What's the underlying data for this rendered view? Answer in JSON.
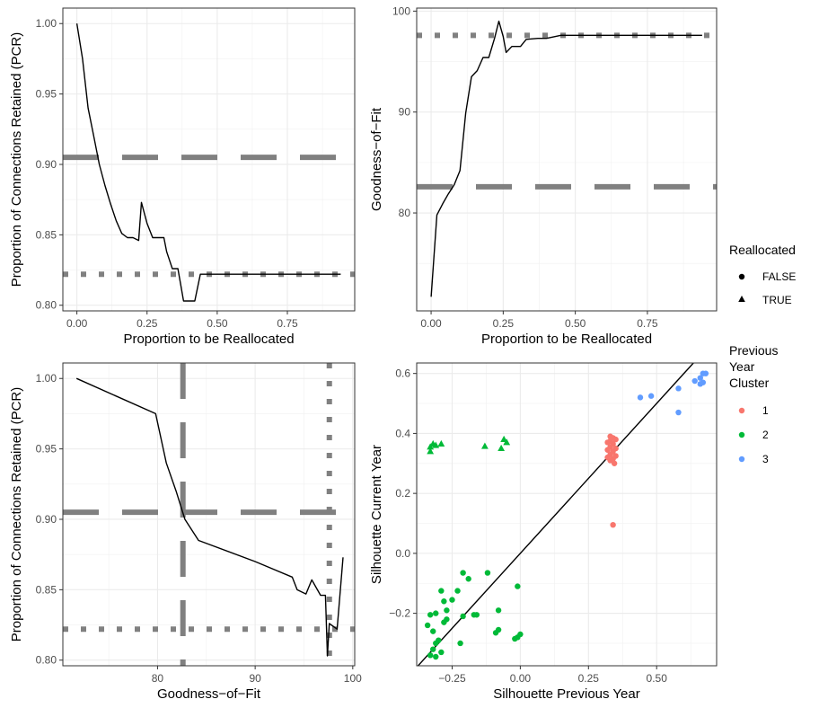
{
  "chart_data": [
    {
      "type": "line",
      "panel": "top-left",
      "xlabel": "Proportion to be Reallocated",
      "ylabel": "Proportion of Connections Retained (PCR)",
      "xlim": [
        -0.05,
        0.99
      ],
      "ylim": [
        0.796,
        1.011
      ],
      "x_ticks": [
        0.0,
        0.25,
        0.5,
        0.75
      ],
      "x_tick_labels": [
        "0.00",
        "0.25",
        "0.50",
        "0.75"
      ],
      "y_ticks": [
        0.8,
        0.85,
        0.9,
        0.95,
        1.0
      ],
      "y_tick_labels": [
        "0.80",
        "0.85",
        "0.90",
        "0.95",
        "1.00"
      ],
      "grid": true,
      "series": [
        {
          "x": [
            0.0,
            0.02,
            0.04,
            0.06,
            0.08,
            0.1,
            0.12,
            0.14,
            0.16,
            0.18,
            0.2,
            0.22,
            0.23,
            0.25,
            0.27,
            0.29,
            0.31,
            0.32,
            0.34,
            0.36,
            0.38,
            0.4,
            0.42,
            0.44,
            0.5,
            0.6,
            0.7,
            0.8,
            0.9,
            0.94
          ],
          "values": [
            1.0,
            0.975,
            0.94,
            0.92,
            0.9,
            0.885,
            0.872,
            0.86,
            0.851,
            0.848,
            0.848,
            0.846,
            0.873,
            0.858,
            0.848,
            0.848,
            0.848,
            0.838,
            0.826,
            0.826,
            0.803,
            0.803,
            0.803,
            0.822,
            0.822,
            0.822,
            0.822,
            0.822,
            0.822,
            0.822
          ]
        }
      ],
      "reference_lines": [
        {
          "orientation": "horizontal",
          "value": 0.905,
          "style": "dashed"
        },
        {
          "orientation": "horizontal",
          "value": 0.822,
          "style": "dotted"
        }
      ]
    },
    {
      "type": "line",
      "panel": "top-right",
      "xlabel": "Proportion to be Reallocated",
      "ylabel": "Goodness−of−Fit",
      "xlim": [
        -0.05,
        0.99
      ],
      "ylim": [
        70.3,
        100.3
      ],
      "x_ticks": [
        0.0,
        0.25,
        0.5,
        0.75
      ],
      "x_tick_labels": [
        "0.00",
        "0.25",
        "0.50",
        "0.75"
      ],
      "y_ticks": [
        80,
        90,
        100
      ],
      "y_tick_labels": [
        "80",
        "90",
        "100"
      ],
      "grid": true,
      "series": [
        {
          "x": [
            0.0,
            0.02,
            0.04,
            0.06,
            0.08,
            0.1,
            0.12,
            0.14,
            0.16,
            0.18,
            0.2,
            0.22,
            0.235,
            0.25,
            0.26,
            0.28,
            0.3,
            0.31,
            0.33,
            0.37,
            0.4,
            0.45,
            0.5,
            0.6,
            0.7,
            0.8,
            0.9,
            0.94
          ],
          "values": [
            71.7,
            79.8,
            80.9,
            81.9,
            82.8,
            84.2,
            89.9,
            93.5,
            94.1,
            95.4,
            95.4,
            97.3,
            99.0,
            97.5,
            95.9,
            96.5,
            96.5,
            96.5,
            97.2,
            97.3,
            97.3,
            97.6,
            97.6,
            97.6,
            97.6,
            97.6,
            97.6,
            97.6
          ]
        }
      ],
      "reference_lines": [
        {
          "orientation": "horizontal",
          "value": 97.6,
          "style": "dotted"
        },
        {
          "orientation": "horizontal",
          "value": 82.6,
          "style": "dashed"
        }
      ]
    },
    {
      "type": "line",
      "panel": "bottom-left",
      "xlabel": "Goodness−of−Fit",
      "ylabel": "Proportion of Connections Retained (PCR)",
      "xlim": [
        70.3,
        100.2
      ],
      "ylim": [
        0.796,
        1.011
      ],
      "x_ticks": [
        80,
        90,
        100
      ],
      "x_tick_labels": [
        "80",
        "90",
        "100"
      ],
      "y_ticks": [
        0.8,
        0.85,
        0.9,
        0.95,
        1.0
      ],
      "y_tick_labels": [
        "0.80",
        "0.85",
        "0.90",
        "0.95",
        "1.00"
      ],
      "grid": true,
      "series": [
        {
          "x": [
            71.7,
            79.8,
            80.9,
            81.9,
            82.8,
            84.2,
            90.0,
            93.8,
            94.3,
            95.2,
            95.8,
            96.7,
            97.2,
            97.4,
            97.6,
            98.4,
            99.0
          ],
          "values": [
            1.0,
            0.975,
            0.94,
            0.92,
            0.9,
            0.885,
            0.87,
            0.859,
            0.85,
            0.847,
            0.857,
            0.846,
            0.846,
            0.803,
            0.826,
            0.822,
            0.873
          ]
        }
      ],
      "reference_lines": [
        {
          "orientation": "horizontal",
          "value": 0.905,
          "style": "dashed"
        },
        {
          "orientation": "horizontal",
          "value": 0.822,
          "style": "dotted"
        },
        {
          "orientation": "vertical",
          "value": 82.6,
          "style": "dashed"
        },
        {
          "orientation": "vertical",
          "value": 97.6,
          "style": "dotted"
        }
      ]
    },
    {
      "type": "scatter",
      "panel": "bottom-right",
      "xlabel": "Silhouette Previous Year",
      "ylabel": "Silhouette Current Year",
      "xlim": [
        -0.38,
        0.72
      ],
      "ylim": [
        -0.375,
        0.635
      ],
      "x_ticks": [
        -0.25,
        0.0,
        0.25,
        0.5
      ],
      "x_tick_labels": [
        "−0.25",
        "0.00",
        "0.25",
        "0.50"
      ],
      "y_ticks": [
        -0.2,
        0.0,
        0.2,
        0.4,
        0.6
      ],
      "y_tick_labels": [
        "−0.2",
        "0.0",
        "0.2",
        "0.4",
        "0.6"
      ],
      "grid": true,
      "reference_lines": [
        {
          "orientation": "diagonal",
          "slope": 1,
          "intercept": 0,
          "style": "solid"
        }
      ],
      "series": [
        {
          "cluster": "1",
          "color": "#F8766D",
          "points": [
            [
              0.33,
              0.39,
              false
            ],
            [
              0.34,
              0.385,
              false
            ],
            [
              0.33,
              0.375,
              false
            ],
            [
              0.35,
              0.38,
              false
            ],
            [
              0.32,
              0.37,
              false
            ],
            [
              0.34,
              0.365,
              false
            ],
            [
              0.33,
              0.355,
              false
            ],
            [
              0.35,
              0.35,
              false
            ],
            [
              0.32,
              0.345,
              false
            ],
            [
              0.34,
              0.34,
              false
            ],
            [
              0.33,
              0.33,
              false
            ],
            [
              0.35,
              0.325,
              false
            ],
            [
              0.32,
              0.32,
              false
            ],
            [
              0.34,
              0.315,
              false
            ],
            [
              0.33,
              0.31,
              false
            ],
            [
              0.345,
              0.3,
              false
            ],
            [
              0.34,
              0.095,
              false
            ]
          ]
        },
        {
          "cluster": "2",
          "color": "#00BA38",
          "points": [
            [
              -0.33,
              0.355,
              true
            ],
            [
              -0.32,
              0.365,
              true
            ],
            [
              -0.31,
              0.36,
              true
            ],
            [
              -0.33,
              0.34,
              true
            ],
            [
              -0.29,
              0.365,
              true
            ],
            [
              -0.13,
              0.357,
              true
            ],
            [
              -0.06,
              0.38,
              true
            ],
            [
              -0.05,
              0.37,
              true
            ],
            [
              -0.07,
              0.35,
              true
            ],
            [
              -0.21,
              -0.065,
              false
            ],
            [
              -0.19,
              -0.085,
              false
            ],
            [
              -0.12,
              -0.065,
              false
            ],
            [
              -0.29,
              -0.125,
              false
            ],
            [
              -0.23,
              -0.125,
              false
            ],
            [
              -0.28,
              -0.16,
              false
            ],
            [
              -0.25,
              -0.155,
              false
            ],
            [
              -0.27,
              -0.19,
              false
            ],
            [
              -0.31,
              -0.2,
              false
            ],
            [
              -0.33,
              -0.205,
              false
            ],
            [
              -0.17,
              -0.205,
              false
            ],
            [
              -0.16,
              -0.205,
              false
            ],
            [
              -0.21,
              -0.21,
              false
            ],
            [
              -0.08,
              -0.19,
              false
            ],
            [
              -0.28,
              -0.23,
              false
            ],
            [
              -0.27,
              -0.22,
              false
            ],
            [
              -0.34,
              -0.24,
              false
            ],
            [
              -0.32,
              -0.26,
              false
            ],
            [
              -0.08,
              -0.255,
              false
            ],
            [
              -0.09,
              -0.265,
              false
            ],
            [
              -0.01,
              -0.11,
              false
            ],
            [
              0.0,
              -0.27,
              false
            ],
            [
              -0.01,
              -0.28,
              false
            ],
            [
              -0.02,
              -0.285,
              false
            ],
            [
              -0.3,
              -0.29,
              false
            ],
            [
              -0.31,
              -0.3,
              false
            ],
            [
              -0.22,
              -0.3,
              false
            ],
            [
              -0.32,
              -0.32,
              false
            ],
            [
              -0.29,
              -0.33,
              false
            ],
            [
              -0.33,
              -0.34,
              false
            ],
            [
              -0.31,
              -0.345,
              false
            ]
          ]
        },
        {
          "cluster": "3",
          "color": "#619CFF",
          "points": [
            [
              0.44,
              0.52,
              false
            ],
            [
              0.48,
              0.525,
              false
            ],
            [
              0.58,
              0.55,
              false
            ],
            [
              0.58,
              0.47,
              false
            ],
            [
              0.64,
              0.575,
              false
            ],
            [
              0.66,
              0.585,
              false
            ],
            [
              0.67,
              0.6,
              false
            ],
            [
              0.68,
              0.6,
              false
            ],
            [
              0.66,
              0.565,
              false
            ],
            [
              0.67,
              0.57,
              false
            ]
          ]
        }
      ]
    }
  ],
  "legends": {
    "shape": {
      "title": "Reallocated",
      "items": [
        {
          "label": "FALSE",
          "shape": "circle"
        },
        {
          "label": "TRUE",
          "shape": "triangle"
        }
      ]
    },
    "color": {
      "title_lines": [
        "Previous",
        "Year",
        "Cluster"
      ],
      "items": [
        {
          "label": "1",
          "color": "#F8766D"
        },
        {
          "label": "2",
          "color": "#00BA38"
        },
        {
          "label": "3",
          "color": "#619CFF"
        }
      ]
    }
  }
}
